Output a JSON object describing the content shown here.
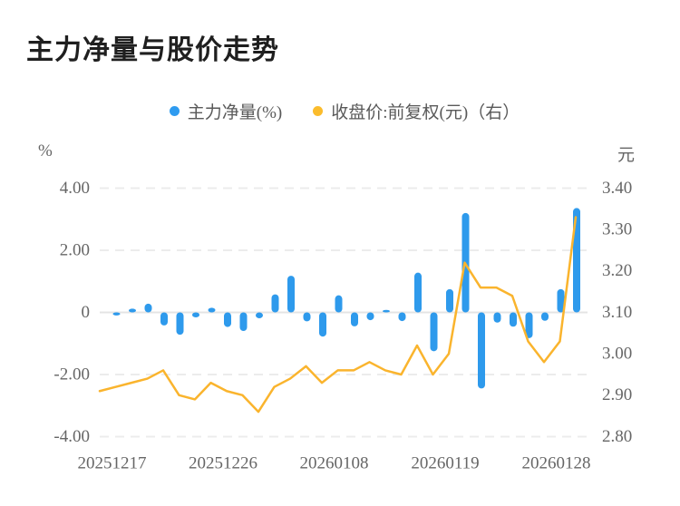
{
  "title": "主力净量与股价走势",
  "legend": {
    "items": [
      {
        "label": "主力净量(%)",
        "color": "#2e9bf0"
      },
      {
        "label": "收盘价:前复权(元)（右）",
        "color": "#fbbc2c"
      }
    ]
  },
  "left_axis": {
    "unit": "%",
    "ticks": [
      "4.00",
      "2.00",
      "0",
      "-2.00",
      "-4.00"
    ],
    "max": 4.0,
    "min": -4.0
  },
  "right_axis": {
    "unit": "元",
    "ticks": [
      "3.40",
      "3.30",
      "3.20",
      "3.10",
      "3.00",
      "2.90",
      "2.80"
    ],
    "max": 3.4,
    "min": 2.8
  },
  "x_axis": {
    "labels": [
      "20251217",
      "20251226",
      "20260108",
      "20260119",
      "20260128"
    ],
    "label_bar_indices": [
      0,
      7,
      14,
      21,
      28
    ]
  },
  "chart_data": {
    "type": "bar",
    "title": "主力净量与股价走势",
    "grid": "horizontal-dashed",
    "legend_position": "top-center",
    "series": [
      {
        "name": "主力净量(%)",
        "type": "bar",
        "axis": "left",
        "unit": "%",
        "color": "#2e9aec",
        "values": [
          -0.1,
          0.12,
          0.28,
          -0.42,
          -0.72,
          -0.16,
          0.15,
          -0.47,
          -0.6,
          -0.19,
          0.58,
          1.18,
          -0.29,
          -0.78,
          0.55,
          -0.45,
          -0.25,
          0.08,
          -0.28,
          1.28,
          -1.25,
          0.75,
          3.2,
          -2.45,
          -0.33,
          -0.46,
          -0.83,
          -0.27,
          0.75,
          3.36
        ]
      },
      {
        "name": "收盘价:前复权(元)（右）",
        "type": "line",
        "axis": "right",
        "unit": "元",
        "color": "#fab42d",
        "starts_at_plot_left_edge": true,
        "values": [
          2.91,
          2.92,
          2.93,
          2.94,
          2.96,
          2.9,
          2.89,
          2.93,
          2.91,
          2.9,
          2.86,
          2.92,
          2.94,
          2.97,
          2.93,
          2.96,
          2.96,
          2.98,
          2.96,
          2.95,
          3.02,
          2.95,
          3.0,
          3.22,
          3.16,
          3.16,
          3.14,
          3.03,
          2.98,
          3.03,
          3.33
        ]
      }
    ],
    "left_ylim": [
      -4.0,
      4.0
    ],
    "right_ylim": [
      2.8,
      3.4
    ],
    "x_tick_labels": [
      "20251217",
      "20251226",
      "20260108",
      "20260119",
      "20260128"
    ]
  },
  "colors": {
    "bar": "#2e9aec",
    "line": "#fab42d",
    "grid": "#ececec",
    "zero_line": "#e4e4e4",
    "axis_text": "#666666",
    "legend_text": "#595959",
    "title_text": "#1f1f1f",
    "background": "#ffffff"
  }
}
